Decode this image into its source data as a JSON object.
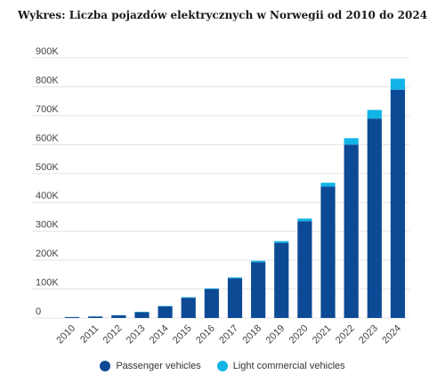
{
  "chart_data": {
    "type": "bar",
    "stacked": true,
    "title": "Wykres: Liczba pojazdów elektrycznych w Norwegii od 2010 do 2024",
    "xlabel": "",
    "ylabel": "",
    "categories": [
      "2010",
      "2011",
      "2012",
      "2013",
      "2014",
      "2015",
      "2016",
      "2017",
      "2018",
      "2019",
      "2020",
      "2021",
      "2022",
      "2023",
      "2024"
    ],
    "y_ticks": [
      "0",
      "100K",
      "200K",
      "300K",
      "400K",
      "500K",
      "600K",
      "700K",
      "800K",
      "900K"
    ],
    "ylim": [
      0,
      900000
    ],
    "grid": true,
    "legend_position": "bottom",
    "series": [
      {
        "name": "Passenger vehicles",
        "color": "#0d4a96",
        "values": [
          3000,
          5000,
          9000,
          20000,
          40000,
          70000,
          100000,
          137000,
          193000,
          260000,
          335000,
          455000,
          600000,
          690000,
          790000
        ]
      },
      {
        "name": "Light commercial vehicles",
        "color": "#11b4e6",
        "values": [
          500,
          600,
          800,
          1000,
          1500,
          2000,
          2500,
          3500,
          5000,
          6000,
          9000,
          13000,
          22000,
          30000,
          38000
        ]
      }
    ]
  }
}
